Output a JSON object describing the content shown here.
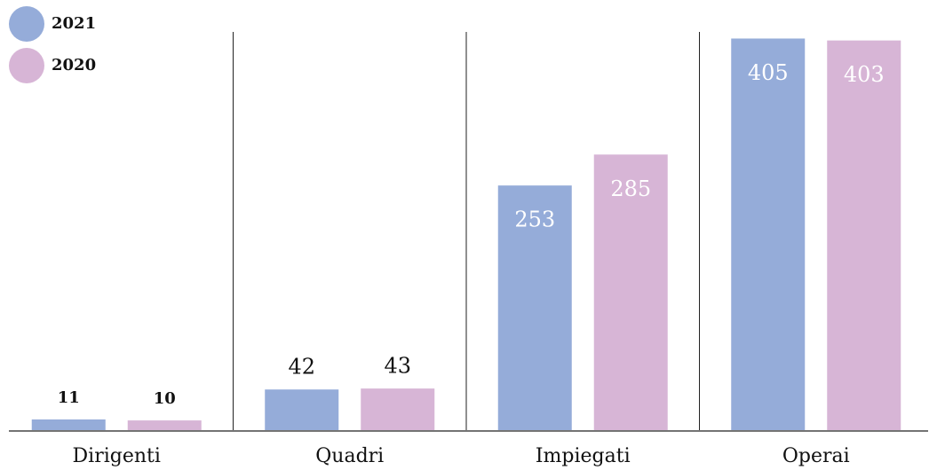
{
  "chart_data": {
    "type": "bar",
    "categories": [
      "Dirigenti",
      "Quadri",
      "Impiegati",
      "Operai"
    ],
    "series": [
      {
        "name": "2021",
        "color": "#95acd9",
        "values": [
          11,
          42,
          253,
          405
        ]
      },
      {
        "name": "2020",
        "color": "#d7b5d6",
        "values": [
          10,
          43,
          285,
          403
        ]
      }
    ],
    "ylim": [
      0,
      410
    ],
    "legend": "top-left"
  }
}
